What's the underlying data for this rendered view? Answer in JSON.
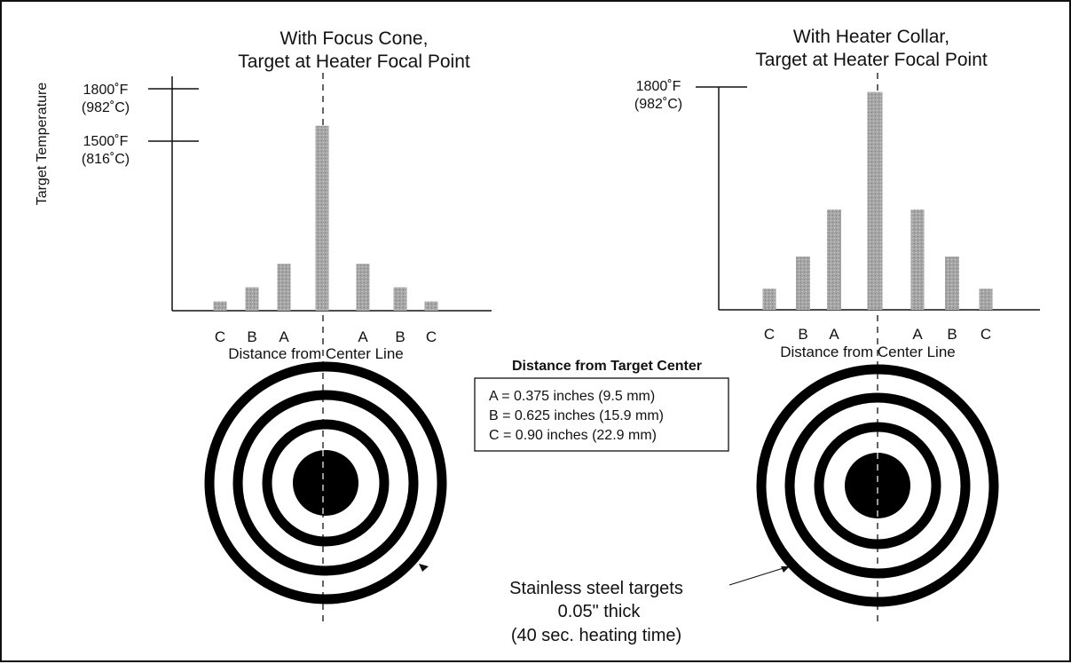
{
  "y_axis_label": "Target Temperature",
  "chart_data": [
    {
      "type": "bar",
      "title": [
        "With Focus Cone,",
        "Target at Heater Focal Point"
      ],
      "xlabel": "Distance from Center Line",
      "ylabel": "Target Temperature",
      "categories": [
        "C",
        "B",
        "A",
        "",
        "A",
        "B",
        "C"
      ],
      "values": [
        75,
        190,
        380,
        1500,
        380,
        190,
        75
      ],
      "ylim": [
        0,
        1800
      ],
      "y_ticks": [
        {
          "value": 1800,
          "label_f": "1800˚F",
          "label_c": "(982˚C)"
        },
        {
          "value": 1500,
          "label_f": "1500˚F",
          "label_c": "(816˚C)"
        }
      ]
    },
    {
      "type": "bar",
      "title": [
        "With Heater Collar,",
        "Target at Heater Focal Point"
      ],
      "xlabel": "Distance from Center Line",
      "ylabel": "",
      "categories": [
        "C",
        "B",
        "A",
        "",
        "A",
        "B",
        "C"
      ],
      "values": [
        170,
        430,
        810,
        1760,
        810,
        430,
        170
      ],
      "ylim": [
        0,
        1800
      ],
      "y_ticks": [
        {
          "value": 1800,
          "label_f": "1800˚F",
          "label_c": "(982˚C)"
        }
      ]
    }
  ],
  "legend": {
    "title": "Distance from Target Center",
    "items": [
      "A = 0.375 inches (9.5 mm)",
      "B = 0.625 inches (15.9 mm)",
      "C = 0.90 inches (22.9 mm)"
    ]
  },
  "caption": [
    "Stainless steel targets",
    "0.05\" thick",
    "(40 sec. heating time)"
  ],
  "colors": {
    "bar": "#a6a6a6",
    "ink": "#111111",
    "target": "#000000"
  }
}
